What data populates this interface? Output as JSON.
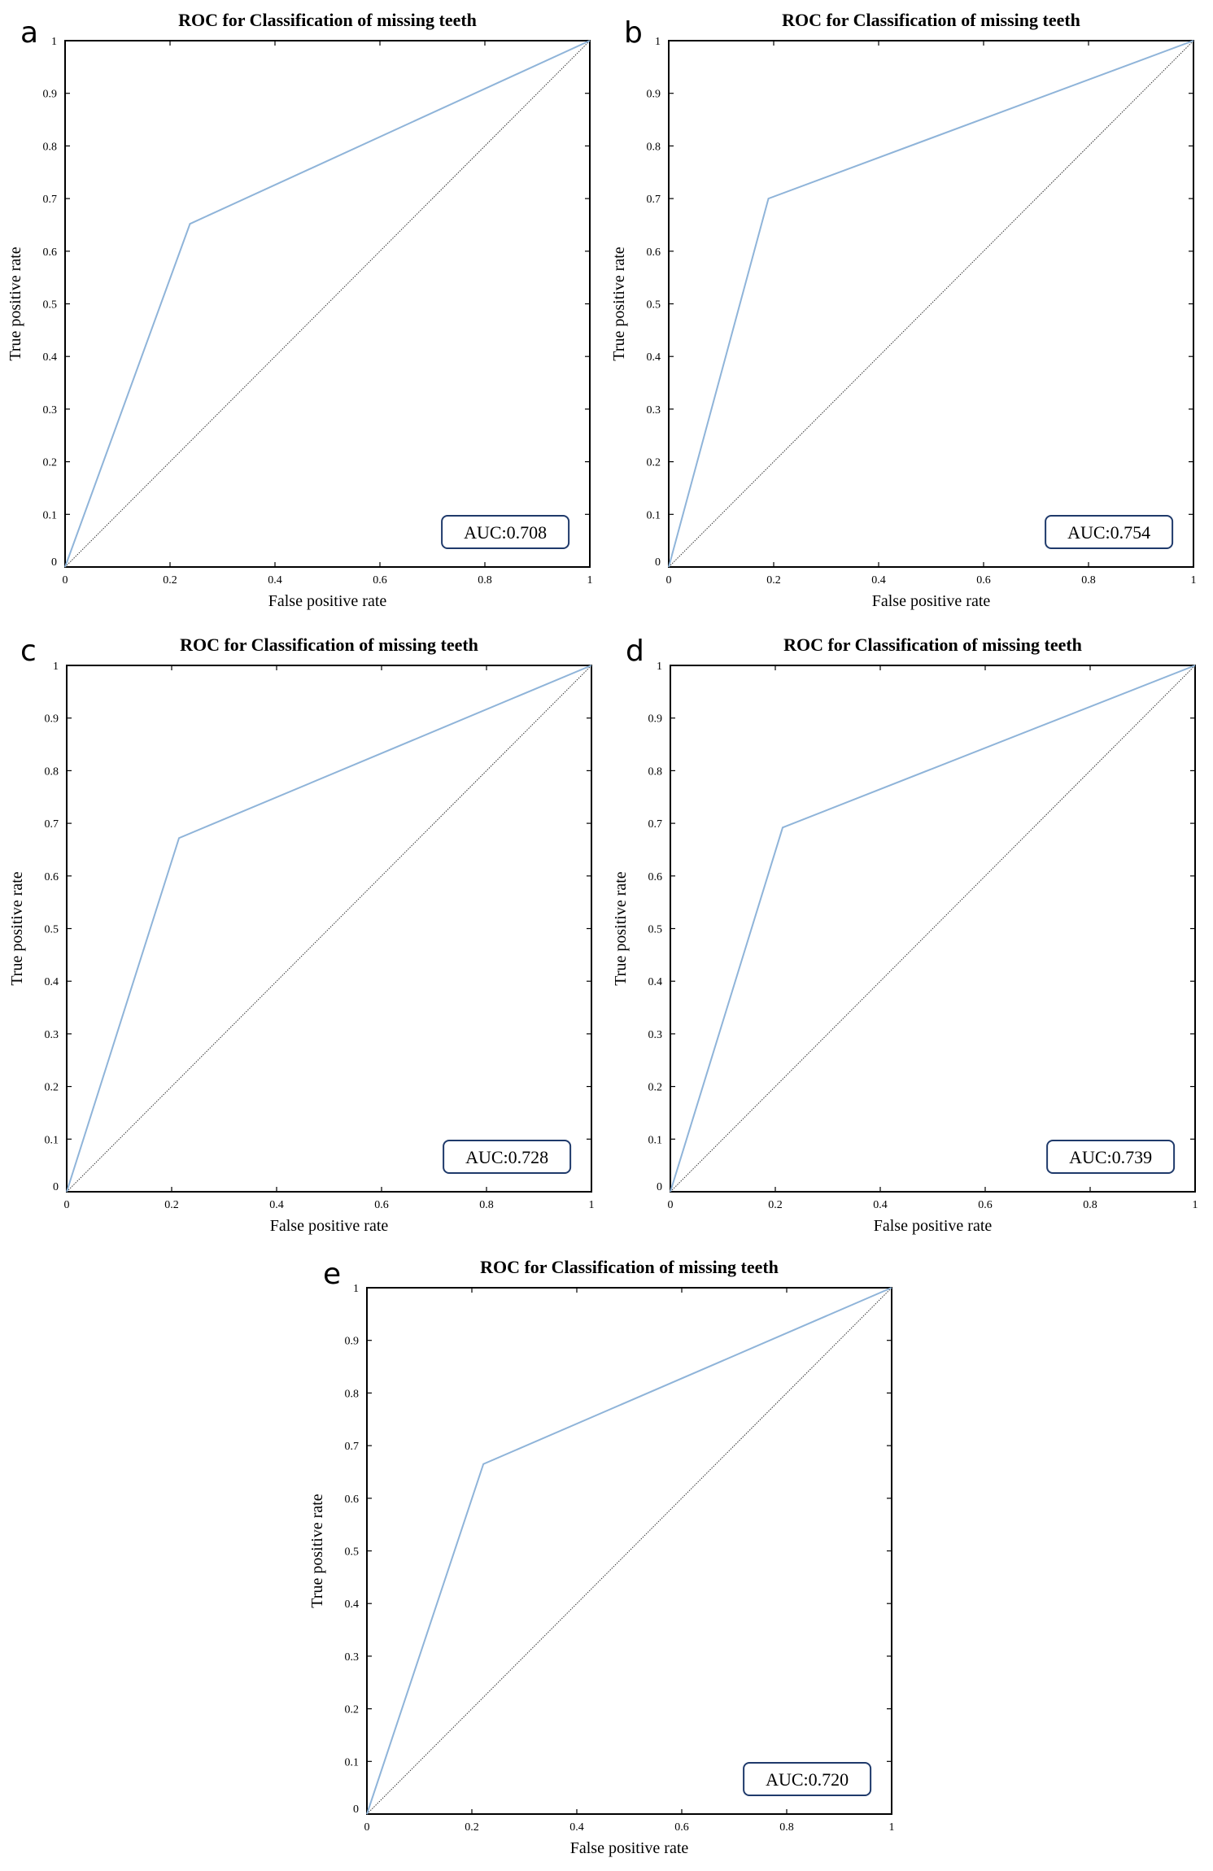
{
  "chart_data": [
    {
      "type": "line",
      "panel": "a",
      "title": "ROC for Classification of missing teeth",
      "xlabel": "False positive rate",
      "ylabel": "True positive rate",
      "xlim": [
        0,
        1
      ],
      "ylim": [
        0,
        1
      ],
      "x_ticks": [
        "0",
        "0.2",
        "0.4",
        "0.6",
        "0.8",
        "1"
      ],
      "y_ticks": [
        "0",
        "0.1",
        "0.2",
        "0.3",
        "0.4",
        "0.5",
        "0.6",
        "0.7",
        "0.8",
        "0.9",
        "1"
      ],
      "series": [
        {
          "x": [
            0,
            0.238,
            1
          ],
          "y": [
            0,
            0.652,
            1
          ]
        },
        {
          "x": [
            0,
            1
          ],
          "y": [
            0,
            1
          ]
        }
      ],
      "annotation": "AUC:0.708",
      "grid": false
    },
    {
      "type": "line",
      "panel": "b",
      "title": "ROC for Classification of missing teeth",
      "xlabel": "False positive rate",
      "ylabel": "True positive rate",
      "xlim": [
        0,
        1
      ],
      "ylim": [
        0,
        1
      ],
      "x_ticks": [
        "0",
        "0.2",
        "0.4",
        "0.6",
        "0.8",
        "1"
      ],
      "y_ticks": [
        "0",
        "0.1",
        "0.2",
        "0.3",
        "0.4",
        "0.5",
        "0.6",
        "0.7",
        "0.8",
        "0.9",
        "1"
      ],
      "series": [
        {
          "x": [
            0,
            0.19,
            1
          ],
          "y": [
            0,
            0.7,
            1
          ]
        },
        {
          "x": [
            0,
            1
          ],
          "y": [
            0,
            1
          ]
        }
      ],
      "annotation": "AUC:0.754",
      "grid": false
    },
    {
      "type": "line",
      "panel": "c",
      "title": "ROC for Classification of missing teeth",
      "xlabel": "False positive rate",
      "ylabel": "True positive rate",
      "xlim": [
        0,
        1
      ],
      "ylim": [
        0,
        1
      ],
      "x_ticks": [
        "0",
        "0.2",
        "0.4",
        "0.6",
        "0.8",
        "1"
      ],
      "y_ticks": [
        "0",
        "0.1",
        "0.2",
        "0.3",
        "0.4",
        "0.5",
        "0.6",
        "0.7",
        "0.8",
        "0.9",
        "1"
      ],
      "series": [
        {
          "x": [
            0,
            0.214,
            1
          ],
          "y": [
            0,
            0.672,
            1
          ]
        },
        {
          "x": [
            0,
            1
          ],
          "y": [
            0,
            1
          ]
        }
      ],
      "annotation": "AUC:0.728",
      "grid": false
    },
    {
      "type": "line",
      "panel": "d",
      "title": "ROC for Classification of missing teeth",
      "xlabel": "False positive rate",
      "ylabel": "True positive rate",
      "xlim": [
        0,
        1
      ],
      "ylim": [
        0,
        1
      ],
      "x_ticks": [
        "0",
        "0.2",
        "0.4",
        "0.6",
        "0.8",
        "1"
      ],
      "y_ticks": [
        "0",
        "0.1",
        "0.2",
        "0.3",
        "0.4",
        "0.5",
        "0.6",
        "0.7",
        "0.8",
        "0.9",
        "1"
      ],
      "series": [
        {
          "x": [
            0,
            0.214,
            1
          ],
          "y": [
            0,
            0.692,
            1
          ]
        },
        {
          "x": [
            0,
            1
          ],
          "y": [
            0,
            1
          ]
        }
      ],
      "annotation": "AUC:0.739",
      "grid": false
    },
    {
      "type": "line",
      "panel": "e",
      "title": "ROC for Classification of missing teeth",
      "xlabel": "False positive rate",
      "ylabel": "True positive rate",
      "xlim": [
        0,
        1
      ],
      "ylim": [
        0,
        1
      ],
      "x_ticks": [
        "0",
        "0.2",
        "0.4",
        "0.6",
        "0.8",
        "1"
      ],
      "y_ticks": [
        "0",
        "0.1",
        "0.2",
        "0.3",
        "0.4",
        "0.5",
        "0.6",
        "0.7",
        "0.8",
        "0.9",
        "1"
      ],
      "series": [
        {
          "x": [
            0,
            0.222,
            1
          ],
          "y": [
            0,
            0.665,
            1
          ]
        },
        {
          "x": [
            0,
            1
          ],
          "y": [
            0,
            1
          ]
        }
      ],
      "annotation": "AUC:0.720",
      "grid": false
    }
  ],
  "colors": {
    "roc_line": "#8fb4d9",
    "diagonal": "#333333",
    "auc_box_border": "#1f3a6b",
    "axes": "#000000"
  }
}
